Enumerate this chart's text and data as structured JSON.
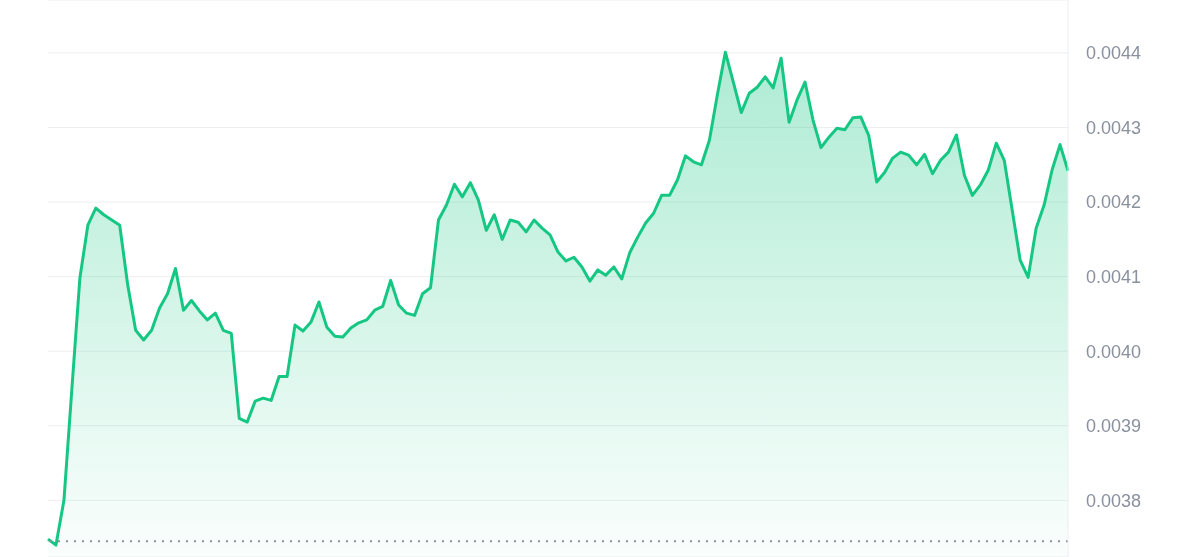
{
  "chart_data": {
    "type": "area",
    "categories": [
      null,
      null,
      null,
      null,
      null,
      null,
      null,
      null,
      null,
      null,
      null,
      null,
      null,
      null,
      null,
      null,
      null,
      null,
      null,
      null,
      null,
      null,
      null,
      null,
      null,
      null,
      null,
      null,
      null,
      null,
      null,
      null,
      null,
      null,
      null,
      null,
      null,
      null,
      null,
      null,
      null,
      null,
      null,
      null,
      null,
      null,
      null,
      null,
      null,
      null,
      null,
      null,
      null,
      null,
      null,
      null,
      null,
      null,
      null,
      null,
      null,
      null,
      null,
      null,
      null,
      null,
      null,
      null,
      null,
      null,
      null,
      null,
      null,
      null,
      null,
      null,
      null,
      null,
      null,
      null,
      null,
      null,
      null,
      null,
      null,
      null,
      null,
      null,
      null,
      null,
      null,
      null,
      null,
      null,
      null,
      null,
      null,
      null,
      null,
      null,
      null,
      null,
      null,
      null,
      null,
      null,
      null,
      null,
      null,
      null,
      null,
      null,
      null,
      null,
      null,
      null,
      null,
      null,
      null,
      null,
      null,
      null,
      null,
      null,
      null,
      null,
      null,
      null,
      null
    ],
    "series": [
      {
        "color": "#16c784",
        "values": [
          0.003748,
          0.00374,
          0.0038,
          0.00395,
          0.004098,
          0.004169,
          0.004192,
          0.004183,
          0.004176,
          0.004169,
          0.004089,
          0.004028,
          0.004015,
          0.004028,
          0.004058,
          0.004077,
          0.004111,
          0.004055,
          0.004068,
          0.004054,
          0.004042,
          0.004051,
          0.004028,
          0.004024,
          0.00391,
          0.003905,
          0.003933,
          0.003937,
          0.003934,
          0.003966,
          0.003966,
          0.004035,
          0.004027,
          0.004039,
          0.004066,
          0.004032,
          0.00402,
          0.004019,
          0.004031,
          0.004038,
          0.004042,
          0.004055,
          0.00406,
          0.004095,
          0.004062,
          0.004051,
          0.004048,
          0.004077,
          0.004085,
          0.004176,
          0.004196,
          0.004224,
          0.004207,
          0.004226,
          0.004203,
          0.004162,
          0.004183,
          0.00415,
          0.004176,
          0.004173,
          0.00416,
          0.004176,
          0.004165,
          0.004156,
          0.004133,
          0.004121,
          0.004126,
          0.004113,
          0.004094,
          0.004109,
          0.004102,
          0.004113,
          0.004097,
          0.004132,
          0.004153,
          0.004172,
          0.004185,
          0.004209,
          0.004209,
          0.00423,
          0.004262,
          0.004254,
          0.00425,
          0.004283,
          0.004344,
          0.004401,
          0.004361,
          0.00432,
          0.004346,
          0.004354,
          0.004368,
          0.004353,
          0.004393,
          0.004307,
          0.004337,
          0.004361,
          0.00431,
          0.004273,
          0.004287,
          0.004299,
          0.004297,
          0.004313,
          0.004314,
          0.004289,
          0.004227,
          0.00424,
          0.004259,
          0.004267,
          0.004263,
          0.00425,
          0.004264,
          0.004238,
          0.004256,
          0.004267,
          0.00429,
          0.004236,
          0.004209,
          0.004223,
          0.004243,
          0.004279,
          0.004256,
          0.004189,
          0.004122,
          0.004099,
          0.004165,
          0.004196,
          0.004243,
          0.004277,
          0.004242
        ]
      }
    ],
    "ylim": [
      0.003724,
      0.004471
    ],
    "yticks": [
      0.0038,
      0.0039,
      {
        "value": 0.004,
        "label": "0.0040"
      },
      0.0041,
      0.0042,
      0.0043,
      0.0044
    ],
    "ref_lines": [
      {
        "axis": "y",
        "value": 0.003745,
        "color": "#8a919e",
        "line_style": "dotted"
      }
    ],
    "grid": "y",
    "tick_labels": "y",
    "legend": false
  }
}
